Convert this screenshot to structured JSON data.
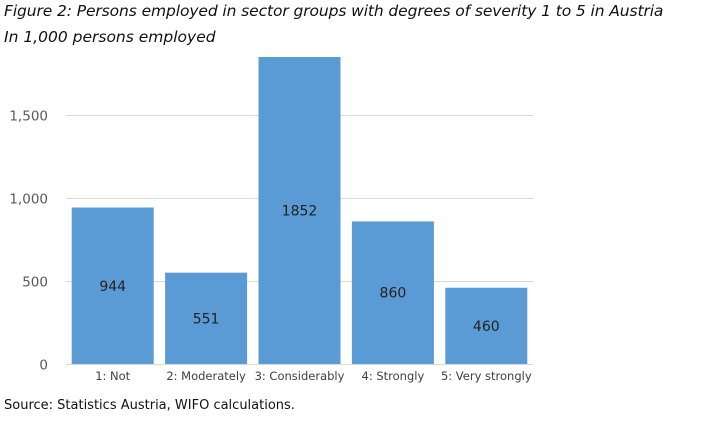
{
  "title": "Figure 2: Persons employed in sector groups with degrees of severity 1 to 5 in Austria",
  "subtitle": "In 1,000 persons employed",
  "source": "Source: Statistics Austria, WIFO calculations.",
  "chart_data": {
    "type": "bar",
    "categories": [
      "1: Not",
      "2: Moderately",
      "3: Considerably",
      "4: Strongly",
      "5: Very strongly"
    ],
    "values": [
      944,
      551,
      1852,
      860,
      460
    ],
    "data_labels": [
      "944",
      "551",
      "1852",
      "860",
      "460"
    ],
    "ylim": [
      0,
      1852
    ],
    "yticks": [
      0,
      500,
      1000,
      1500
    ],
    "ytick_labels": [
      "0",
      "500",
      "1,000",
      "1,500"
    ],
    "grid": true,
    "bar_color": "#5b9bd5",
    "grid_color": "#d9d9d9"
  }
}
